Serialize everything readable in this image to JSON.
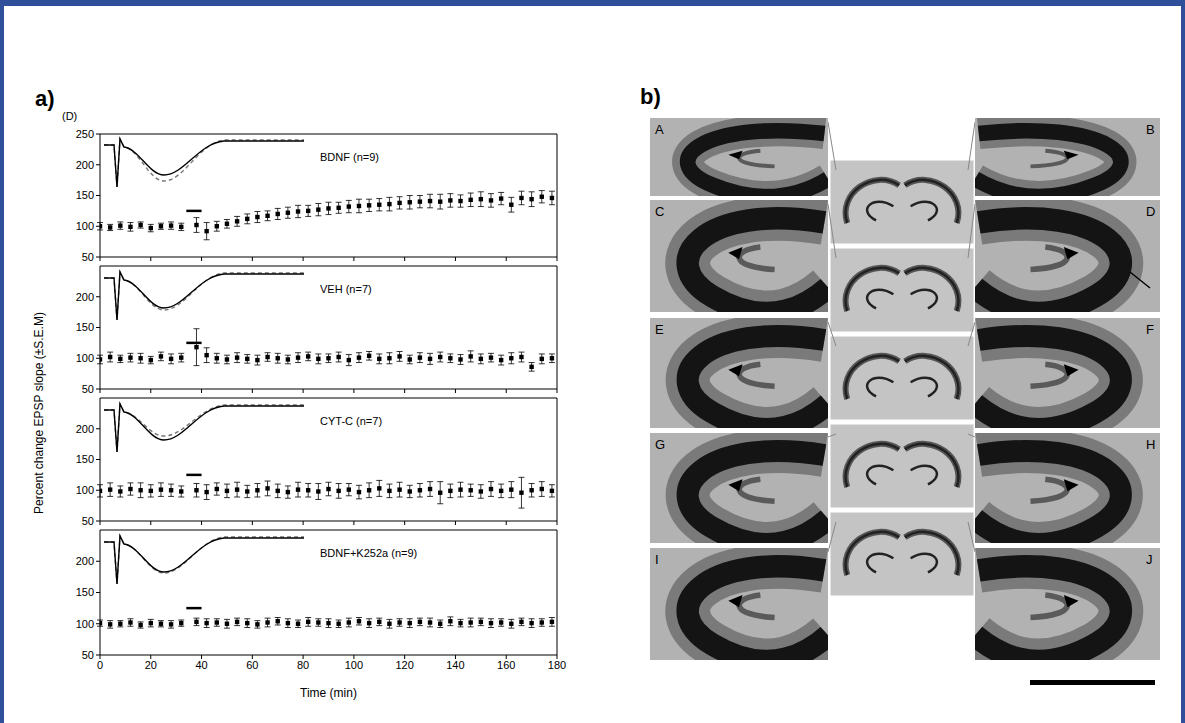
{
  "chart_data": [
    {
      "type": "scatter",
      "series": [
        {
          "name": "BDNF (n=9)",
          "color": "#000000",
          "marker": "square",
          "values": [
            100,
            98,
            101,
            99,
            102,
            97,
            100,
            101,
            99,
            102,
            92,
            100,
            104,
            108,
            112,
            115,
            117,
            120,
            122,
            124,
            125,
            127,
            129,
            130,
            132,
            133,
            134,
            135,
            136,
            138,
            139,
            140,
            141,
            140,
            142,
            141,
            143,
            144,
            142,
            145,
            135,
            146,
            144,
            148,
            146
          ],
          "errors": [
            6,
            5,
            6,
            7,
            5,
            6,
            5,
            6,
            6,
            12,
            14,
            8,
            7,
            8,
            8,
            9,
            8,
            9,
            9,
            10,
            9,
            10,
            10,
            9,
            10,
            11,
            10,
            10,
            11,
            10,
            11,
            10,
            11,
            12,
            11,
            10,
            11,
            12,
            11,
            10,
            12,
            11,
            12,
            10,
            11
          ]
        }
      ],
      "x": [
        0,
        4,
        8,
        12,
        16,
        20,
        24,
        28,
        32,
        38,
        42,
        46,
        50,
        54,
        58,
        62,
        66,
        70,
        74,
        78,
        82,
        86,
        90,
        94,
        98,
        102,
        106,
        110,
        114,
        118,
        122,
        126,
        130,
        134,
        138,
        142,
        146,
        150,
        154,
        158,
        162,
        166,
        170,
        174,
        178
      ],
      "xlim": [
        0,
        180
      ],
      "xticks": [
        0,
        20,
        40,
        60,
        80,
        100,
        120,
        140,
        160,
        180
      ],
      "ylim": [
        50,
        250
      ],
      "yticks": [
        50,
        100,
        150,
        200,
        250
      ],
      "tick_labels": "y",
      "treatment_bar": {
        "x": [
          34,
          40
        ],
        "y": 125
      }
    },
    {
      "type": "scatter",
      "series": [
        {
          "name": "VEH (n=7)",
          "color": "#000000",
          "marker": "square",
          "values": [
            98,
            102,
            99,
            101,
            100,
            97,
            103,
            99,
            101,
            118,
            105,
            100,
            98,
            101,
            99,
            97,
            102,
            100,
            98,
            101,
            103,
            99,
            100,
            102,
            97,
            101,
            104,
            99,
            100,
            103,
            98,
            101,
            99,
            102,
            100,
            98,
            103,
            99,
            101,
            97,
            100,
            102,
            86,
            99,
            100
          ],
          "errors": [
            7,
            8,
            6,
            7,
            8,
            6,
            7,
            8,
            7,
            30,
            12,
            8,
            7,
            8,
            7,
            8,
            7,
            8,
            7,
            8,
            7,
            8,
            7,
            8,
            9,
            8,
            7,
            8,
            9,
            8,
            7,
            8,
            9,
            8,
            7,
            8,
            9,
            8,
            7,
            8,
            9,
            8,
            7,
            8,
            7
          ]
        }
      ],
      "x": [
        0,
        4,
        8,
        12,
        16,
        20,
        24,
        28,
        32,
        38,
        42,
        46,
        50,
        54,
        58,
        62,
        66,
        70,
        74,
        78,
        82,
        86,
        90,
        94,
        98,
        102,
        106,
        110,
        114,
        118,
        122,
        126,
        130,
        134,
        138,
        142,
        146,
        150,
        154,
        158,
        162,
        166,
        170,
        174,
        178
      ],
      "xlim": [
        0,
        180
      ],
      "xticks": [
        0,
        20,
        40,
        60,
        80,
        100,
        120,
        140,
        160,
        180
      ],
      "ylim": [
        50,
        250
      ],
      "yticks": [
        50,
        100,
        150,
        200
      ],
      "tick_labels": "y",
      "treatment_bar": {
        "x": [
          34,
          40
        ],
        "y": 125
      }
    },
    {
      "type": "scatter",
      "series": [
        {
          "name": "CYT-C (n=7)",
          "color": "#000000",
          "marker": "square",
          "values": [
            99,
            101,
            98,
            102,
            100,
            99,
            101,
            100,
            98,
            100,
            97,
            102,
            99,
            101,
            98,
            100,
            103,
            99,
            97,
            101,
            100,
            98,
            102,
            99,
            101,
            97,
            100,
            103,
            99,
            101,
            98,
            100,
            102,
            96,
            99,
            101,
            100,
            98,
            102,
            99,
            101,
            96,
            100,
            102,
            99
          ],
          "errors": [
            10,
            11,
            9,
            10,
            12,
            10,
            11,
            10,
            9,
            11,
            12,
            10,
            11,
            12,
            10,
            11,
            12,
            11,
            10,
            12,
            11,
            13,
            11,
            12,
            10,
            11,
            12,
            13,
            11,
            12,
            10,
            11,
            12,
            18,
            11,
            12,
            10,
            11,
            12,
            11,
            13,
            25,
            11,
            12,
            10
          ]
        }
      ],
      "x": [
        0,
        4,
        8,
        12,
        16,
        20,
        24,
        28,
        32,
        38,
        42,
        46,
        50,
        54,
        58,
        62,
        66,
        70,
        74,
        78,
        82,
        86,
        90,
        94,
        98,
        102,
        106,
        110,
        114,
        118,
        122,
        126,
        130,
        134,
        138,
        142,
        146,
        150,
        154,
        158,
        162,
        166,
        170,
        174,
        178
      ],
      "xlim": [
        0,
        180
      ],
      "xticks": [
        0,
        20,
        40,
        60,
        80,
        100,
        120,
        140,
        160,
        180
      ],
      "ylim": [
        50,
        250
      ],
      "yticks": [
        50,
        100,
        150,
        200
      ],
      "tick_labels": "y",
      "treatment_bar": {
        "x": [
          34,
          40
        ],
        "y": 125
      }
    },
    {
      "type": "scatter",
      "series": [
        {
          "name": "BDNF+K252a (n=9)",
          "color": "#000000",
          "marker": "square",
          "values": [
            101,
            99,
            100,
            102,
            98,
            101,
            100,
            99,
            101,
            103,
            101,
            102,
            100,
            103,
            101,
            99,
            102,
            104,
            101,
            100,
            103,
            102,
            101,
            100,
            102,
            104,
            101,
            103,
            100,
            102,
            101,
            103,
            102,
            100,
            104,
            101,
            102,
            103,
            101,
            102,
            100,
            103,
            101,
            102,
            103
          ],
          "errors": [
            5,
            6,
            5,
            6,
            5,
            6,
            5,
            6,
            5,
            6,
            7,
            6,
            7,
            6,
            7,
            6,
            7,
            6,
            7,
            6,
            7,
            6,
            7,
            6,
            7,
            6,
            7,
            6,
            7,
            6,
            7,
            6,
            7,
            6,
            7,
            6,
            7,
            6,
            7,
            6,
            7,
            6,
            7,
            6,
            7
          ]
        }
      ],
      "x": [
        0,
        4,
        8,
        12,
        16,
        20,
        24,
        28,
        32,
        38,
        42,
        46,
        50,
        54,
        58,
        62,
        66,
        70,
        74,
        78,
        82,
        86,
        90,
        94,
        98,
        102,
        106,
        110,
        114,
        118,
        122,
        126,
        130,
        134,
        138,
        142,
        146,
        150,
        154,
        158,
        162,
        166,
        170,
        174,
        178
      ],
      "xlim": [
        0,
        180
      ],
      "xticks": [
        0,
        20,
        40,
        60,
        80,
        100,
        120,
        140,
        160,
        180
      ],
      "ylim": [
        50,
        250
      ],
      "yticks": [
        50,
        100,
        150,
        200
      ],
      "x_label": "Time (min)",
      "tick_labels": true,
      "treatment_bar": {
        "x": [
          34,
          40
        ],
        "y": 125
      }
    }
  ],
  "figure": {
    "panel_labels": [
      "a)",
      "b)"
    ],
    "panel_a_tag": "(D)",
    "y_label": "Percent change EPSP slope (±S.E.M)",
    "image_letters": [
      "A",
      "B",
      "C",
      "D",
      "E",
      "F",
      "G",
      "H",
      "I",
      "J"
    ]
  }
}
